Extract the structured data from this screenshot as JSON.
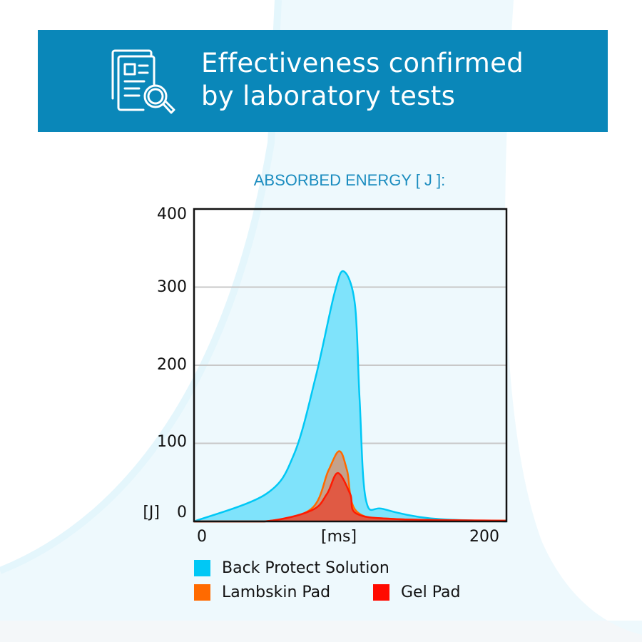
{
  "header": {
    "icon": "document-magnifier-icon",
    "title_line1": "Effectiveness confirmed",
    "title_line2": "by laboratory tests",
    "background_color": "#0a87b9"
  },
  "chart_data": {
    "type": "area",
    "title": "ABSORBED ENERGY [ J ]:",
    "xlabel": "[ms]",
    "ylabel": "[J]",
    "xlim": [
      0,
      200
    ],
    "ylim": [
      0,
      400
    ],
    "x_ticks": [
      "0",
      "200"
    ],
    "y_ticks": [
      "400",
      "300",
      "200",
      "100",
      "0"
    ],
    "grid": "horizontal",
    "legend_position": "bottom",
    "series": [
      {
        "name": "Back Protect Solution",
        "color": "#00c8f5",
        "fill": "#7fe3fb",
        "x": [
          0,
          46,
          64,
          78,
          90,
          96,
          103,
          106,
          110,
          121,
          151,
          200
        ],
        "y": [
          0,
          35,
          86,
          186,
          293,
          320,
          278,
          156,
          28,
          16,
          4,
          0
        ]
      },
      {
        "name": "Lambskin Pad",
        "color": "#ff6a00",
        "fill": "#c4a28c",
        "x": [
          0,
          45,
          75,
          86,
          93,
          98,
          104,
          130,
          200
        ],
        "y": [
          0,
          0,
          16,
          65,
          90,
          65,
          13,
          3,
          1
        ]
      },
      {
        "name": "Gel Pad",
        "color": "#ff1a00",
        "fill": "#e05a44",
        "x": [
          0,
          45,
          75,
          85,
          92,
          100,
          104,
          130,
          200
        ],
        "y": [
          0,
          0,
          14,
          35,
          62,
          35,
          10,
          3,
          1
        ]
      }
    ]
  }
}
